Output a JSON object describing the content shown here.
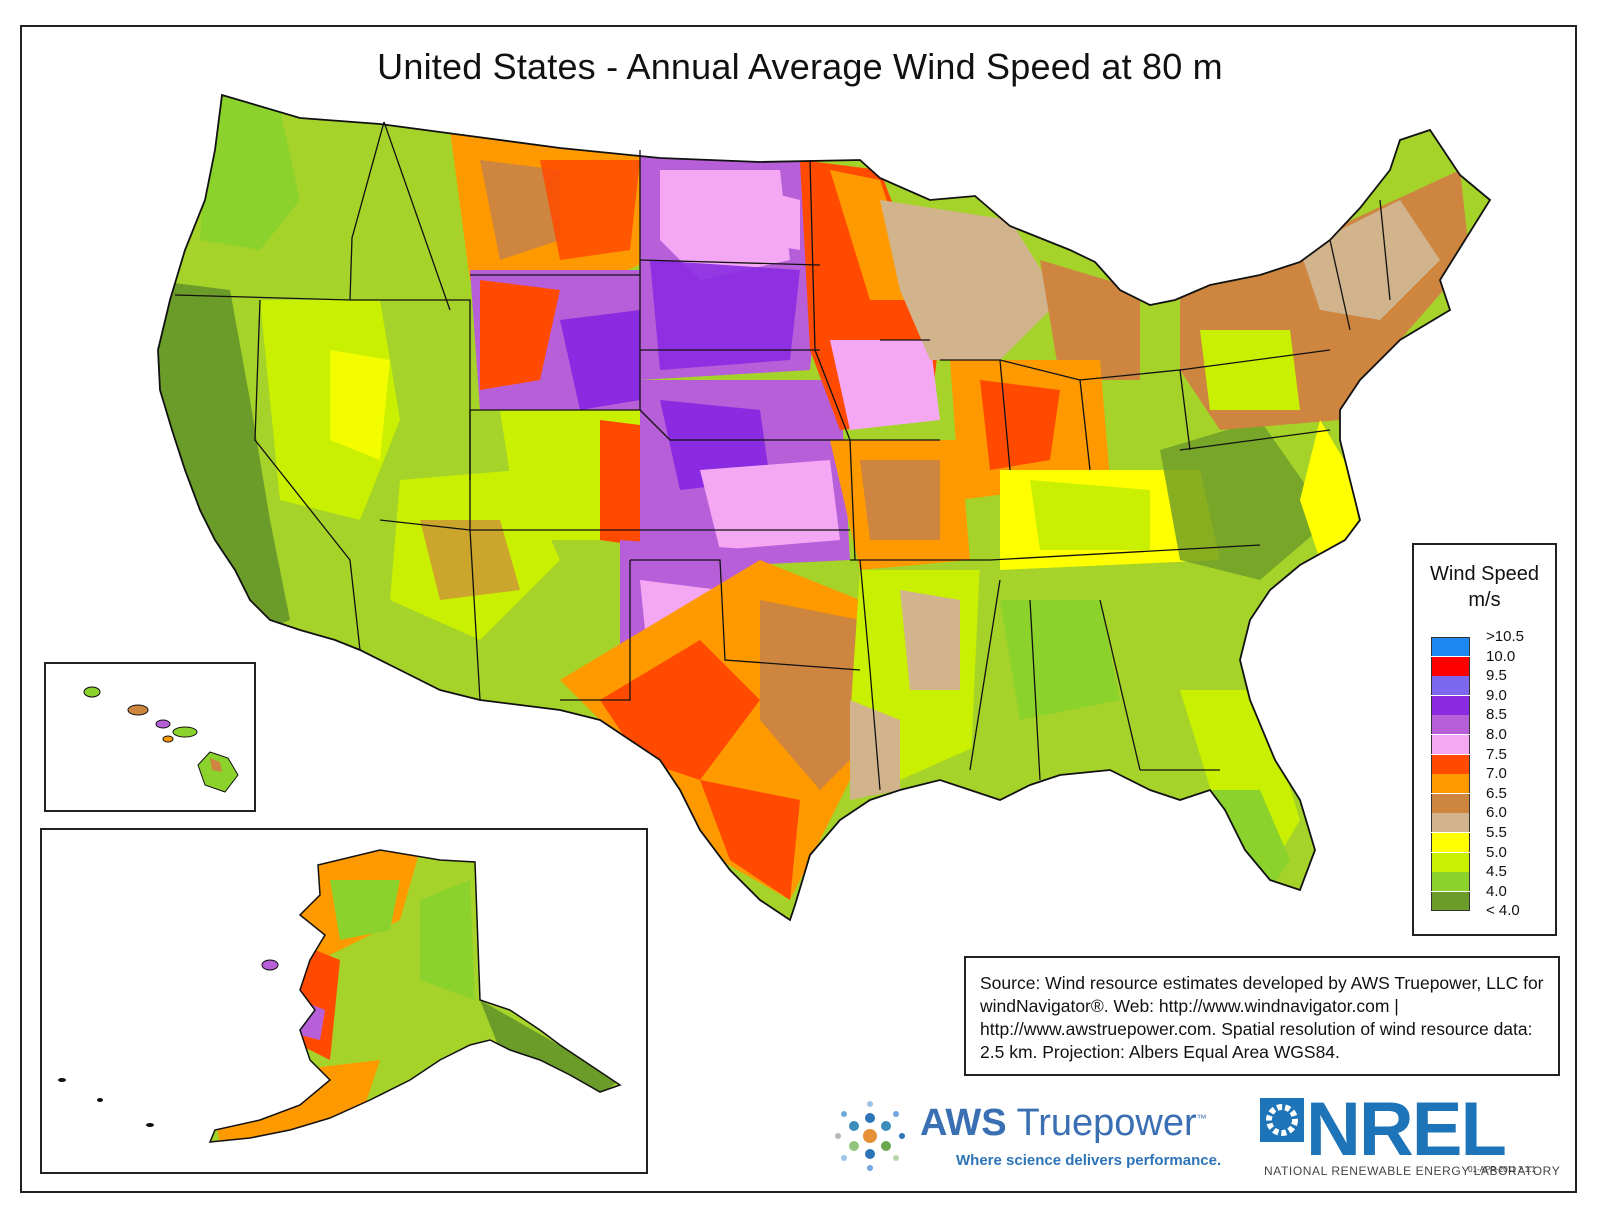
{
  "title": "United States - Annual Average Wind Speed at 80 m",
  "legend": {
    "title_line1": "Wind Speed",
    "title_line2": "m/s",
    "classes": [
      {
        "label": ">10.5",
        "color": "#1e88f2"
      },
      {
        "label": "10.0",
        "color": "#ff0000"
      },
      {
        "label": "9.5",
        "color": "#7b68ee"
      },
      {
        "label": "9.0",
        "color": "#8a2be2"
      },
      {
        "label": "8.5",
        "color": "#b65fd8"
      },
      {
        "label": "8.0",
        "color": "#f4a8f4"
      },
      {
        "label": "7.5",
        "color": "#ff4a00"
      },
      {
        "label": "7.0",
        "color": "#ff9900"
      },
      {
        "label": "6.5",
        "color": "#cd853f"
      },
      {
        "label": "6.0",
        "color": "#d2b48c"
      },
      {
        "label": "5.5",
        "color": "#ffff00"
      },
      {
        "label": "5.0",
        "color": "#c8f000"
      },
      {
        "label": "4.5",
        "color": "#8cd22d"
      },
      {
        "label": "4.0",
        "color": "#6b9b28"
      },
      {
        "label": "< 4.0",
        "color": "#ffffff"
      }
    ]
  },
  "source_note": "Source: Wind resource estimates developed by AWS Truepower, LLC for windNavigator®. Web: http://www.windnavigator.com | http://www.awstruepower.com. Spatial resolution of wind resource data: 2.5 km. Projection: Albers Equal Area WGS84.",
  "logos": {
    "aws_name_bold": "AWS",
    "aws_name_light": "Truepower",
    "aws_tm": "™",
    "aws_tagline": "Where science delivers performance.",
    "nrel_name": "NREL",
    "nrel_full": "NATIONAL RENEWABLE ENERGY LABORATORY"
  },
  "version": "01-APR-2011 2.1.1",
  "regions": [
    {
      "name": "pacific-northwest",
      "class": "4.5"
    },
    {
      "name": "california-coast",
      "class": "4.0"
    },
    {
      "name": "great-basin",
      "class": "5.0"
    },
    {
      "name": "northern-rockies",
      "class": "6.5"
    },
    {
      "name": "great-plains-north",
      "class": "8.5"
    },
    {
      "name": "great-plains-south",
      "class": "8.0"
    },
    {
      "name": "minnesota-iowa",
      "class": "7.5"
    },
    {
      "name": "midwest",
      "class": "7.0"
    },
    {
      "name": "northeast",
      "class": "6.0"
    },
    {
      "name": "southeast",
      "class": "5.0"
    },
    {
      "name": "texas",
      "class": "7.0"
    },
    {
      "name": "gulf-coast",
      "class": "5.5"
    }
  ]
}
